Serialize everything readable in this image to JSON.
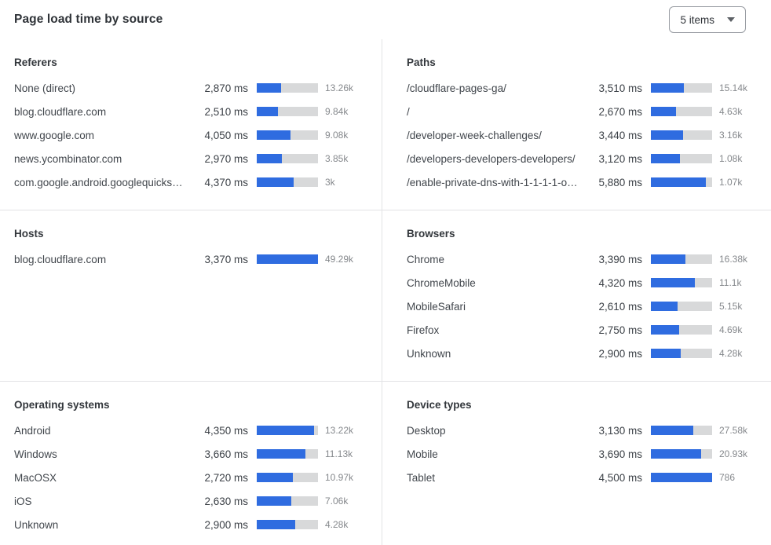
{
  "header": {
    "title": "Page load time by source",
    "items_selector": {
      "label": "5 items"
    }
  },
  "colors": {
    "bar_fill": "#2F6CE0",
    "bar_track": "#D8D9DA",
    "divider": "#E2E3E5"
  },
  "chart_data": [
    {
      "type": "bar",
      "title": "Referers",
      "unit": "ms",
      "scale_max_ms": 7300,
      "rows": [
        {
          "label": "None (direct)",
          "value_ms": 2870,
          "value_label": "2,870 ms",
          "count_label": "13.26k"
        },
        {
          "label": "blog.cloudflare.com",
          "value_ms": 2510,
          "value_label": "2,510 ms",
          "count_label": "9.84k"
        },
        {
          "label": "www.google.com",
          "value_ms": 4050,
          "value_label": "4,050 ms",
          "count_label": "9.08k"
        },
        {
          "label": "news.ycombinator.com",
          "value_ms": 2970,
          "value_label": "2,970 ms",
          "count_label": "3.85k"
        },
        {
          "label": "com.google.android.googlequicksearc…",
          "value_ms": 4370,
          "value_label": "4,370 ms",
          "count_label": "3k"
        }
      ]
    },
    {
      "type": "bar",
      "title": "Paths",
      "unit": "ms",
      "scale_max_ms": 6530,
      "rows": [
        {
          "label": "/cloudflare-pages-ga/",
          "value_ms": 3510,
          "value_label": "3,510 ms",
          "count_label": "15.14k"
        },
        {
          "label": "/",
          "value_ms": 2670,
          "value_label": "2,670 ms",
          "count_label": "4.63k"
        },
        {
          "label": "/developer-week-challenges/",
          "value_ms": 3440,
          "value_label": "3,440 ms",
          "count_label": "3.16k"
        },
        {
          "label": "/developers-developers-developers/",
          "value_ms": 3120,
          "value_label": "3,120 ms",
          "count_label": "1.08k"
        },
        {
          "label": "/enable-private-dns-with-1-1-1-1-on-…",
          "value_ms": 5880,
          "value_label": "5,880 ms",
          "count_label": "1.07k"
        }
      ]
    },
    {
      "type": "bar",
      "title": "Hosts",
      "unit": "ms",
      "scale_max_ms": 3370,
      "rows": [
        {
          "label": "blog.cloudflare.com",
          "value_ms": 3370,
          "value_label": "3,370 ms",
          "count_label": "49.29k"
        }
      ]
    },
    {
      "type": "bar",
      "title": "Browsers",
      "unit": "ms",
      "scale_max_ms": 6000,
      "rows": [
        {
          "label": "Chrome",
          "value_ms": 3390,
          "value_label": "3,390 ms",
          "count_label": "16.38k"
        },
        {
          "label": "ChromeMobile",
          "value_ms": 4320,
          "value_label": "4,320 ms",
          "count_label": "11.1k"
        },
        {
          "label": "MobileSafari",
          "value_ms": 2610,
          "value_label": "2,610 ms",
          "count_label": "5.15k"
        },
        {
          "label": "Firefox",
          "value_ms": 2750,
          "value_label": "2,750 ms",
          "count_label": "4.69k"
        },
        {
          "label": "Unknown",
          "value_ms": 2900,
          "value_label": "2,900 ms",
          "count_label": "4.28k"
        }
      ]
    },
    {
      "type": "bar",
      "title": "Operating systems",
      "unit": "ms",
      "scale_max_ms": 4630,
      "rows": [
        {
          "label": "Android",
          "value_ms": 4350,
          "value_label": "4,350 ms",
          "count_label": "13.22k"
        },
        {
          "label": "Windows",
          "value_ms": 3660,
          "value_label": "3,660 ms",
          "count_label": "11.13k"
        },
        {
          "label": "MacOSX",
          "value_ms": 2720,
          "value_label": "2,720 ms",
          "count_label": "10.97k"
        },
        {
          "label": "iOS",
          "value_ms": 2630,
          "value_label": "2,630 ms",
          "count_label": "7.06k"
        },
        {
          "label": "Unknown",
          "value_ms": 2900,
          "value_label": "2,900 ms",
          "count_label": "4.28k"
        }
      ]
    },
    {
      "type": "bar",
      "title": "Device types",
      "unit": "ms",
      "scale_max_ms": 4500,
      "rows": [
        {
          "label": "Desktop",
          "value_ms": 3130,
          "value_label": "3,130 ms",
          "count_label": "27.58k"
        },
        {
          "label": "Mobile",
          "value_ms": 3690,
          "value_label": "3,690 ms",
          "count_label": "20.93k"
        },
        {
          "label": "Tablet",
          "value_ms": 4500,
          "value_label": "4,500 ms",
          "count_label": "786"
        }
      ]
    }
  ]
}
